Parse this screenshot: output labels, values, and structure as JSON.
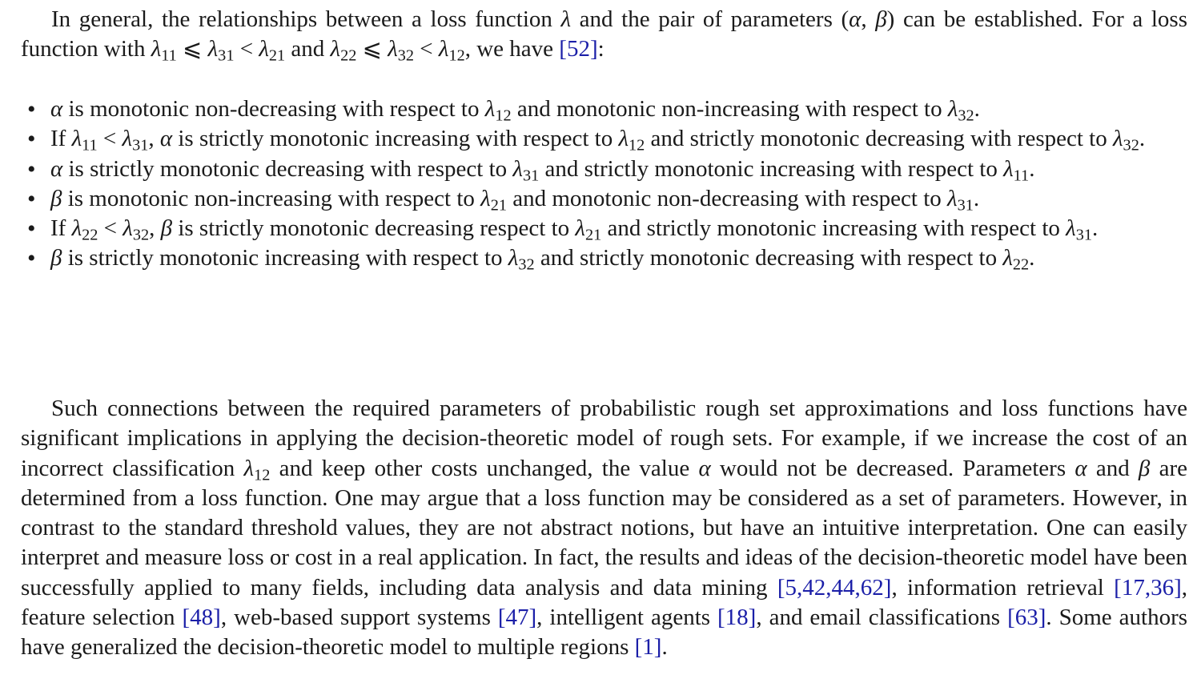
{
  "paragraph1": [
    {
      "t": "In general, the relationships between a loss function "
    },
    {
      "m": "λ"
    },
    {
      "t": " and the pair of parameters ("
    },
    {
      "m": "α"
    },
    {
      "t": ", "
    },
    {
      "m": "β"
    },
    {
      "t": ") can be established. For a loss function with "
    },
    {
      "m": "λ",
      "sub": "11"
    },
    {
      "t": " ⩽ "
    },
    {
      "m": "λ",
      "sub": "31"
    },
    {
      "t": " < "
    },
    {
      "m": "λ",
      "sub": "21"
    },
    {
      "t": " and "
    },
    {
      "m": "λ",
      "sub": "22"
    },
    {
      "t": " ⩽ "
    },
    {
      "m": "λ",
      "sub": "32"
    },
    {
      "t": " < "
    },
    {
      "m": "λ",
      "sub": "12"
    },
    {
      "t": ", we have "
    },
    {
      "ref": "[52]"
    },
    {
      "t": ":"
    }
  ],
  "bullets": [
    [
      {
        "m": "α"
      },
      {
        "t": " is monotonic non-decreasing with respect to "
      },
      {
        "m": "λ",
        "sub": "12"
      },
      {
        "t": " and monotonic non-increasing with respect to "
      },
      {
        "m": "λ",
        "sub": "32"
      },
      {
        "t": "."
      }
    ],
    [
      {
        "t": "If "
      },
      {
        "m": "λ",
        "sub": "11"
      },
      {
        "t": " < "
      },
      {
        "m": "λ",
        "sub": "31"
      },
      {
        "t": ", "
      },
      {
        "m": "α"
      },
      {
        "t": " is strictly monotonic increasing with respect to "
      },
      {
        "m": "λ",
        "sub": "12"
      },
      {
        "t": " and strictly monotonic decreasing with respect to "
      },
      {
        "m": "λ",
        "sub": "32"
      },
      {
        "t": "."
      }
    ],
    [
      {
        "m": "α"
      },
      {
        "t": " is strictly monotonic decreasing with respect to "
      },
      {
        "m": "λ",
        "sub": "31"
      },
      {
        "t": " and strictly monotonic increasing with respect to "
      },
      {
        "m": "λ",
        "sub": "11"
      },
      {
        "t": "."
      }
    ],
    [
      {
        "m": "β"
      },
      {
        "t": " is monotonic non-increasing with respect to "
      },
      {
        "m": "λ",
        "sub": "21"
      },
      {
        "t": " and monotonic non-decreasing with respect to "
      },
      {
        "m": "λ",
        "sub": "31"
      },
      {
        "t": "."
      }
    ],
    [
      {
        "t": "If "
      },
      {
        "m": "λ",
        "sub": "22"
      },
      {
        "t": " < "
      },
      {
        "m": "λ",
        "sub": "32"
      },
      {
        "t": ", "
      },
      {
        "m": "β"
      },
      {
        "t": " is strictly monotonic decreasing respect to "
      },
      {
        "m": "λ",
        "sub": "21"
      },
      {
        "t": " and strictly monotonic increasing with respect to "
      },
      {
        "m": "λ",
        "sub": "31"
      },
      {
        "t": "."
      }
    ],
    [
      {
        "m": "β"
      },
      {
        "t": " is strictly monotonic increasing with respect to "
      },
      {
        "m": "λ",
        "sub": "32"
      },
      {
        "t": " and strictly monotonic decreasing with respect to "
      },
      {
        "m": "λ",
        "sub": "22"
      },
      {
        "t": "."
      }
    ]
  ],
  "paragraph2": [
    {
      "t": "Such connections between the required parameters of probabilistic rough set approximations and loss functions have significant implications in applying the decision-theoretic model of rough sets. For example, if we increase the cost of an incorrect classification "
    },
    {
      "m": "λ",
      "sub": "12"
    },
    {
      "t": " and keep other costs unchanged, the value "
    },
    {
      "m": "α"
    },
    {
      "t": " would not be decreased. Parameters "
    },
    {
      "m": "α"
    },
    {
      "t": " and "
    },
    {
      "m": "β"
    },
    {
      "t": " are determined from a loss function. One may argue that a loss function may be considered as a set of parameters. However, in contrast to the standard threshold values, they are not abstract notions, but have an intuitive interpretation. One can easily interpret and measure loss or cost in a real application. In fact, the results and ideas of the decision-theoretic model have been successfully applied to many fields, including data analysis and data mining "
    },
    {
      "ref": "[5,42,44,62]"
    },
    {
      "t": ", information retrieval "
    },
    {
      "ref": "[17,36]"
    },
    {
      "t": ", feature selection "
    },
    {
      "ref": "[48]"
    },
    {
      "t": ", web-based support systems "
    },
    {
      "ref": "[47]"
    },
    {
      "t": ", intelligent agents "
    },
    {
      "ref": "[18]"
    },
    {
      "t": ", and email classifications "
    },
    {
      "ref": "[63]"
    },
    {
      "t": ". Some authors have generalized the decision-theoretic model to multiple regions "
    },
    {
      "ref": "[1]"
    },
    {
      "t": "."
    }
  ]
}
